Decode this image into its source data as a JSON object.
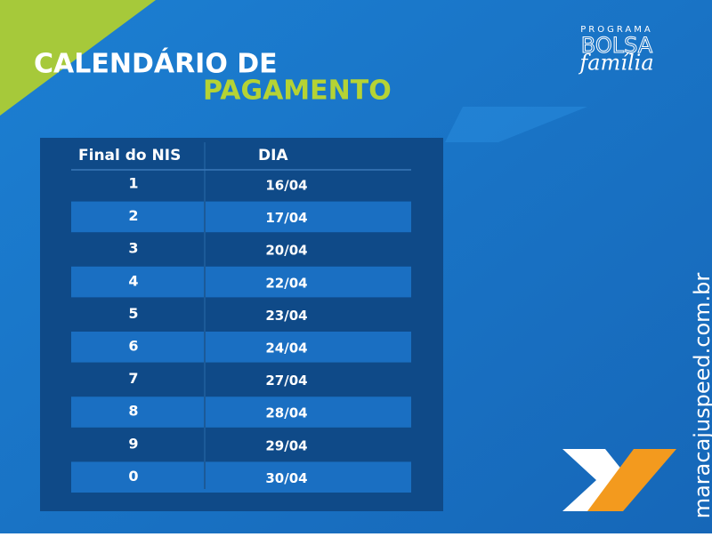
{
  "header": {
    "title_line1": "CALENDÁRIO DE",
    "title_line2": "PAGAMENTO"
  },
  "logo": {
    "program": "PROGRAMA",
    "name": "BOLSA",
    "subname": "família"
  },
  "table": {
    "columns": [
      "Final do NIS",
      "DIA"
    ],
    "rows": [
      [
        "1",
        "16/04"
      ],
      [
        "2",
        "17/04"
      ],
      [
        "3",
        "20/04"
      ],
      [
        "4",
        "22/04"
      ],
      [
        "5",
        "23/04"
      ],
      [
        "6",
        "24/04"
      ],
      [
        "7",
        "27/04"
      ],
      [
        "8",
        "28/04"
      ],
      [
        "9",
        "29/04"
      ],
      [
        "0",
        "30/04"
      ]
    ]
  },
  "watermark": "maracajuspeed.com.br"
}
